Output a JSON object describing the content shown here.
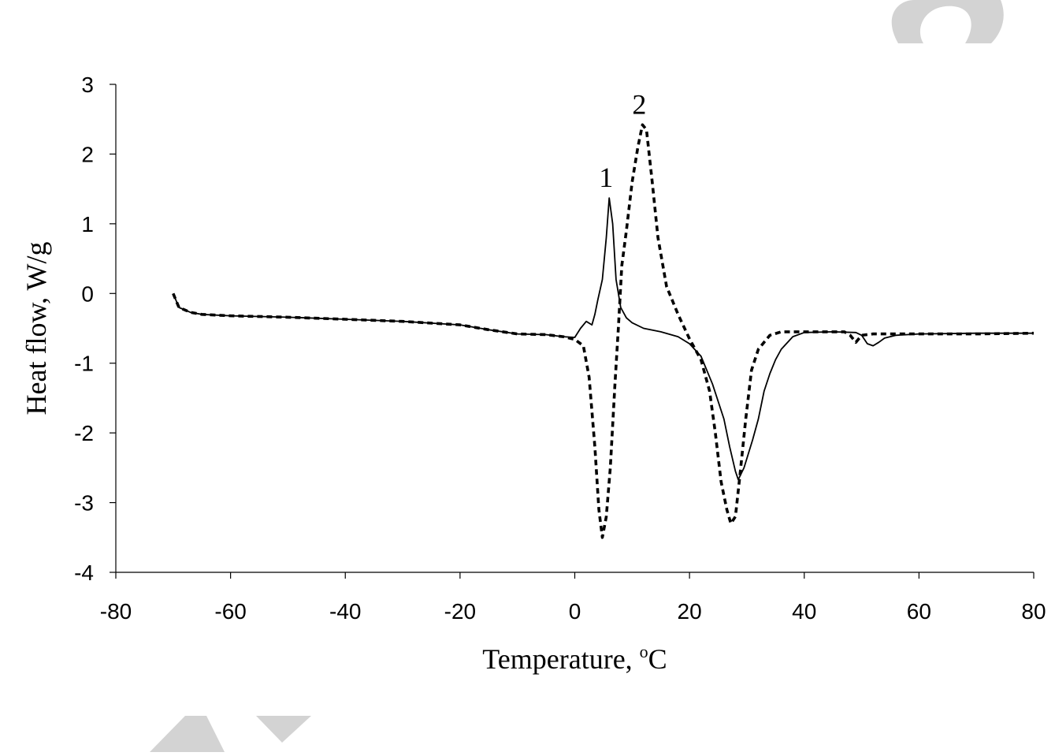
{
  "chart_data": {
    "type": "line",
    "title": "",
    "xlabel": "Temperature, ",
    "xlabel_sup": "o",
    "xlabel_unit": "C",
    "ylabel": "Heat flow,  W/g",
    "xlim": [
      -80,
      80
    ],
    "ylim": [
      -4,
      3
    ],
    "xticks": [
      "-80",
      "-60",
      "-40",
      "-20",
      "0",
      "20",
      "40",
      "60",
      "80"
    ],
    "yticks": [
      "3",
      "2",
      "1",
      "0",
      "-1",
      "-2",
      "-3",
      "-4"
    ],
    "grid": false,
    "legend": "none",
    "series": [
      {
        "name": "1",
        "style": "solid",
        "points": [
          [
            -70,
            0.0
          ],
          [
            -69,
            -0.2
          ],
          [
            -67,
            -0.27
          ],
          [
            -65,
            -0.3
          ],
          [
            -60,
            -0.32
          ],
          [
            -50,
            -0.34
          ],
          [
            -40,
            -0.37
          ],
          [
            -30,
            -0.4
          ],
          [
            -20,
            -0.45
          ],
          [
            -15,
            -0.52
          ],
          [
            -10,
            -0.58
          ],
          [
            -5,
            -0.59
          ],
          [
            -2,
            -0.62
          ],
          [
            0,
            -0.63
          ],
          [
            1,
            -0.5
          ],
          [
            2,
            -0.4
          ],
          [
            3,
            -0.45
          ],
          [
            3.5,
            -0.3
          ],
          [
            4,
            -0.1
          ],
          [
            4.8,
            0.2
          ],
          [
            5.5,
            0.8
          ],
          [
            6,
            1.37
          ],
          [
            6.6,
            1.0
          ],
          [
            7.2,
            0.2
          ],
          [
            8,
            -0.2
          ],
          [
            9,
            -0.35
          ],
          [
            10,
            -0.42
          ],
          [
            12,
            -0.5
          ],
          [
            15,
            -0.55
          ],
          [
            18,
            -0.62
          ],
          [
            20,
            -0.72
          ],
          [
            22,
            -0.9
          ],
          [
            24,
            -1.3
          ],
          [
            26,
            -1.8
          ],
          [
            27,
            -2.2
          ],
          [
            28,
            -2.55
          ],
          [
            28.5,
            -2.67
          ],
          [
            29.5,
            -2.5
          ],
          [
            31,
            -2.1
          ],
          [
            32,
            -1.8
          ],
          [
            33,
            -1.4
          ],
          [
            34,
            -1.15
          ],
          [
            35,
            -0.95
          ],
          [
            36,
            -0.8
          ],
          [
            38,
            -0.62
          ],
          [
            40,
            -0.56
          ],
          [
            45,
            -0.55
          ],
          [
            49,
            -0.56
          ],
          [
            50,
            -0.6
          ],
          [
            51,
            -0.72
          ],
          [
            52,
            -0.75
          ],
          [
            53,
            -0.7
          ],
          [
            54,
            -0.64
          ],
          [
            56,
            -0.6
          ],
          [
            60,
            -0.58
          ],
          [
            70,
            -0.57
          ],
          [
            80,
            -0.57
          ]
        ]
      },
      {
        "name": "2",
        "style": "dotted",
        "points": [
          [
            -70,
            0.0
          ],
          [
            -69,
            -0.2
          ],
          [
            -67,
            -0.27
          ],
          [
            -65,
            -0.3
          ],
          [
            -60,
            -0.32
          ],
          [
            -50,
            -0.34
          ],
          [
            -40,
            -0.37
          ],
          [
            -30,
            -0.4
          ],
          [
            -20,
            -0.45
          ],
          [
            -15,
            -0.52
          ],
          [
            -10,
            -0.58
          ],
          [
            -5,
            -0.59
          ],
          [
            -2,
            -0.62
          ],
          [
            0,
            -0.66
          ],
          [
            1.5,
            -0.75
          ],
          [
            2.5,
            -1.2
          ],
          [
            3.5,
            -2.2
          ],
          [
            4.2,
            -3.1
          ],
          [
            4.8,
            -3.5
          ],
          [
            5.5,
            -3.2
          ],
          [
            6.2,
            -2.5
          ],
          [
            7,
            -1.3
          ],
          [
            7.6,
            -0.5
          ],
          [
            8.2,
            0.4
          ],
          [
            9,
            0.9
          ],
          [
            10,
            1.6
          ],
          [
            11,
            2.1
          ],
          [
            11.8,
            2.42
          ],
          [
            12.5,
            2.35
          ],
          [
            13.5,
            1.6
          ],
          [
            14.5,
            0.8
          ],
          [
            16,
            0.1
          ],
          [
            18,
            -0.3
          ],
          [
            20,
            -0.65
          ],
          [
            22,
            -0.95
          ],
          [
            23.5,
            -1.4
          ],
          [
            24.5,
            -2.0
          ],
          [
            25.5,
            -2.7
          ],
          [
            26.5,
            -3.1
          ],
          [
            27.2,
            -3.3
          ],
          [
            28,
            -3.2
          ],
          [
            28.8,
            -2.6
          ],
          [
            29.8,
            -1.8
          ],
          [
            30.8,
            -1.1
          ],
          [
            32,
            -0.8
          ],
          [
            34,
            -0.6
          ],
          [
            36,
            -0.55
          ],
          [
            40,
            -0.55
          ],
          [
            47,
            -0.55
          ],
          [
            48,
            -0.6
          ],
          [
            49,
            -0.7
          ],
          [
            50,
            -0.6
          ],
          [
            52,
            -0.58
          ],
          [
            60,
            -0.58
          ],
          [
            70,
            -0.58
          ],
          [
            80,
            -0.57
          ]
        ]
      }
    ]
  }
}
